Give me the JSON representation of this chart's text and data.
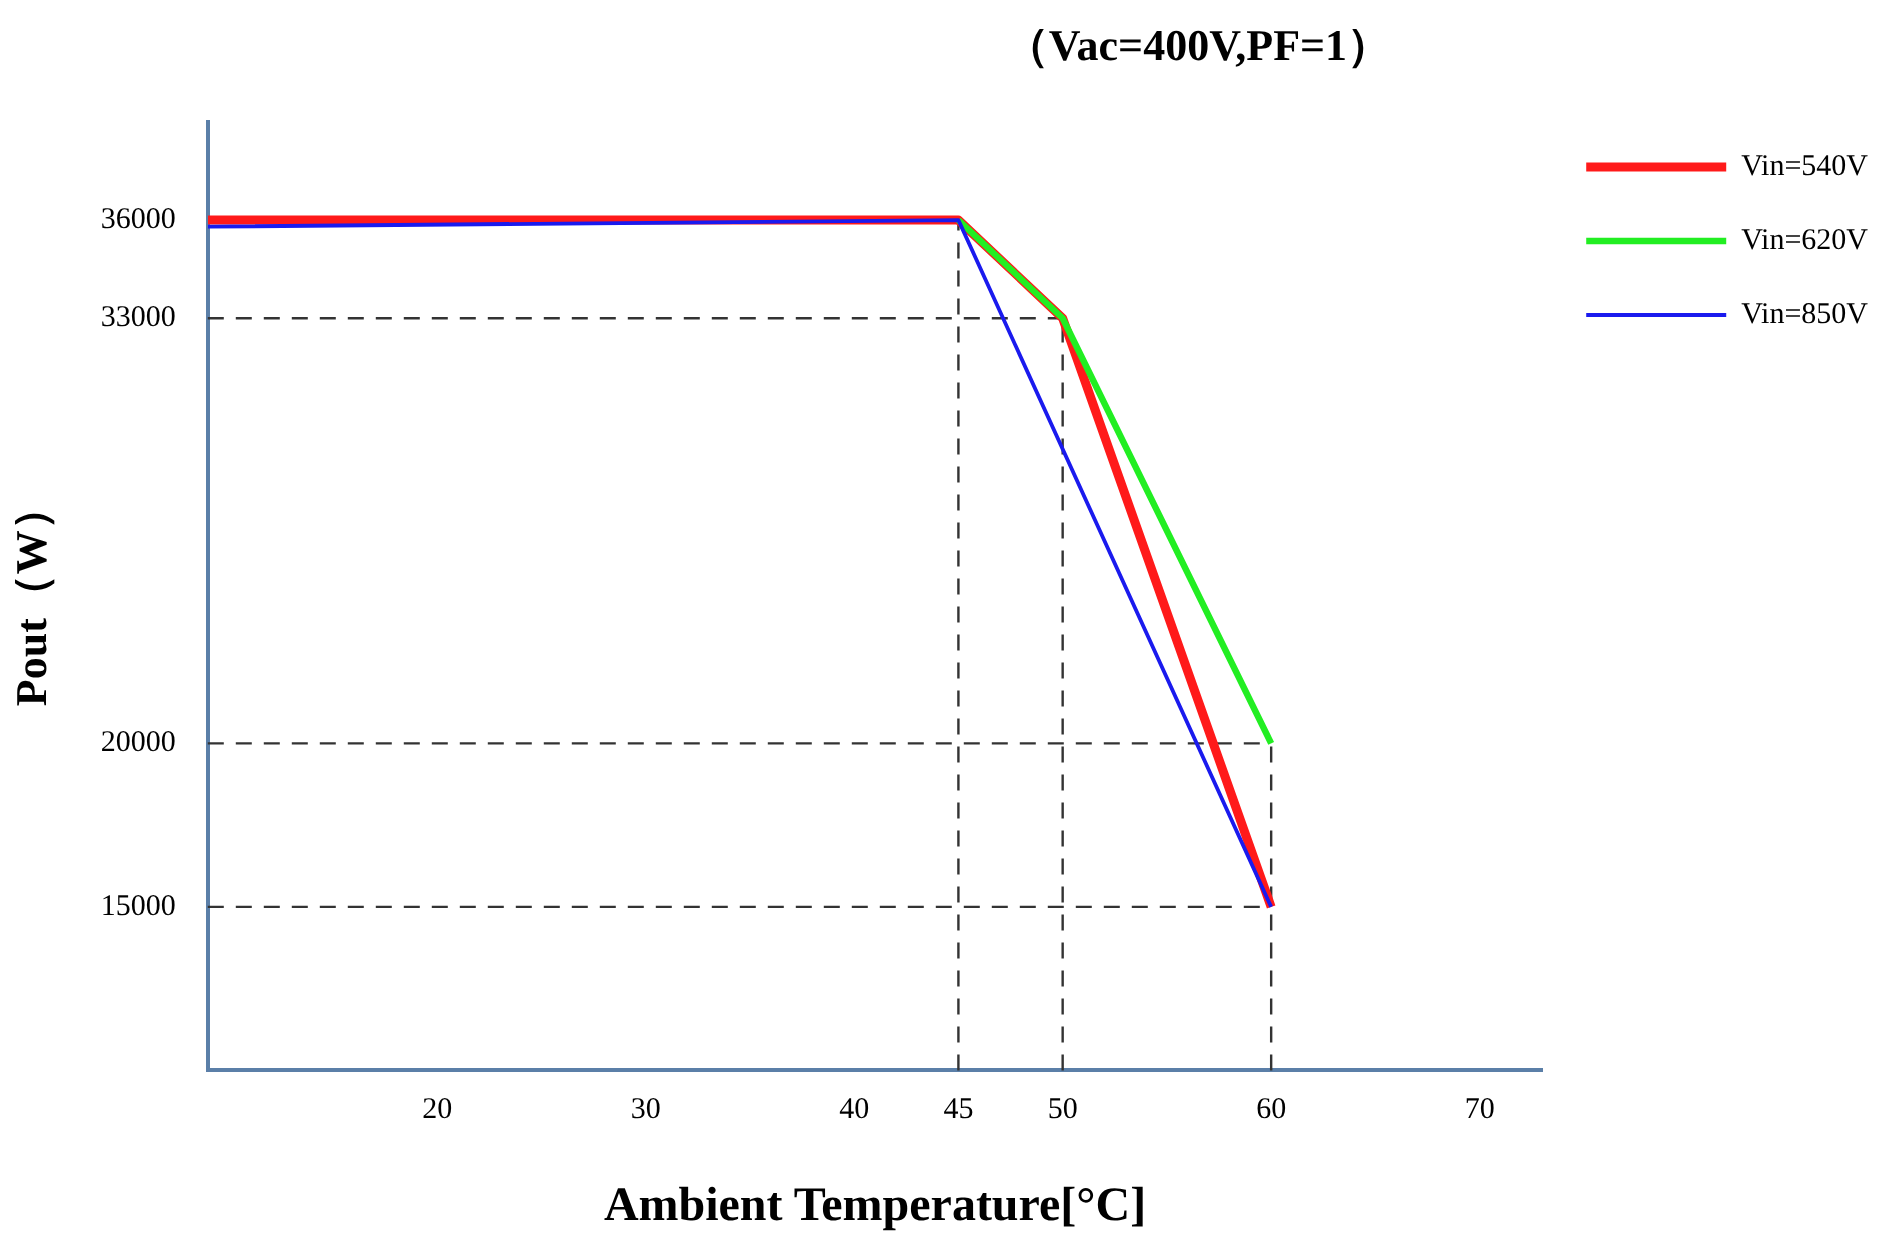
{
  "chart_data": {
    "type": "line",
    "title": "（Vac=400V,PF=1）",
    "xlabel": "Ambient Temperature[°C]",
    "ylabel": "Pout（W）",
    "xlim": [
      9,
      73
    ],
    "xticks": [
      20,
      30,
      40,
      45,
      50,
      60,
      70
    ],
    "ylim": [
      10000,
      39000
    ],
    "yticks": [
      15000,
      20000,
      33000,
      36000
    ],
    "grid": false,
    "legend": "top right",
    "marker": "none",
    "line_style": "solid",
    "series": [
      {
        "name": "Vin=540V",
        "color": "#ff1a1a",
        "x": [
          9,
          45,
          50,
          60
        ],
        "values": [
          36000,
          36000,
          33000,
          15000
        ]
      },
      {
        "name": "Vin=620V",
        "color": "#22ee22",
        "x": [
          45,
          50,
          60
        ],
        "values": [
          36000,
          33000,
          20000
        ]
      },
      {
        "name": "Vin=850V",
        "color": "#1a1aee",
        "x": [
          9,
          45,
          60
        ],
        "values": [
          35800,
          36000,
          15000
        ]
      }
    ],
    "ref_lines": [
      {
        "axis": "y",
        "value": 33000,
        "line_style": "dashed",
        "color": "#333333"
      },
      {
        "axis": "y",
        "value": 20000,
        "line_style": "dashed",
        "color": "#333333"
      },
      {
        "axis": "y",
        "value": 15000,
        "line_style": "dashed",
        "color": "#333333"
      },
      {
        "axis": "x",
        "value": 45,
        "line_style": "dashed",
        "color": "#333333"
      },
      {
        "axis": "x",
        "value": 50,
        "line_style": "dashed",
        "color": "#333333"
      },
      {
        "axis": "x",
        "value": 60,
        "line_style": "dashed",
        "color": "#333333"
      }
    ]
  }
}
